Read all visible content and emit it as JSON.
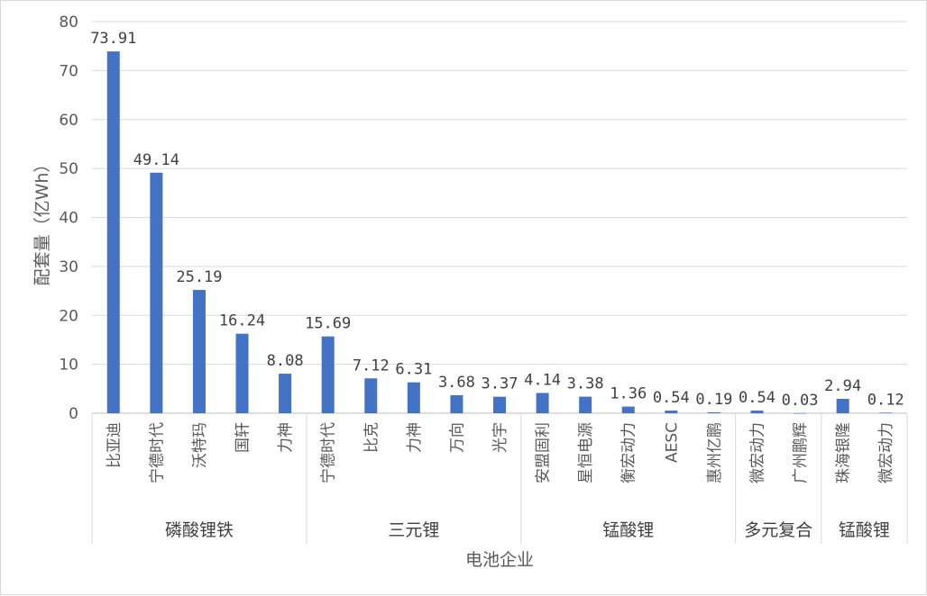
{
  "chart_data": {
    "type": "bar",
    "xlabel": "电池企业",
    "ylabel": "配套量（亿Wh）",
    "ylim": [
      0,
      80
    ],
    "yticks": [
      0,
      10,
      20,
      30,
      40,
      50,
      60,
      70,
      80
    ],
    "grid": true,
    "legend": "none",
    "color": "#4472c4",
    "categories": [
      "比亚迪",
      "宁德时代",
      "沃特玛",
      "国轩",
      "力神",
      "宁德时代",
      "比克",
      "力神",
      "万向",
      "光宇",
      "安盟固利",
      "星恒电源",
      "衡宏动力",
      "AESC",
      "惠州亿鹏",
      "微宏动力",
      "广州鹏辉",
      "珠海银隆",
      "微宏动力"
    ],
    "values": [
      73.91,
      49.14,
      25.19,
      16.24,
      8.08,
      15.69,
      7.12,
      6.31,
      3.68,
      3.37,
      4.14,
      3.38,
      1.36,
      0.54,
      0.19,
      0.54,
      0.03,
      2.94,
      0.12
    ],
    "data_labels": [
      "73.91",
      "49.14",
      "25.19",
      "16.24",
      "8.08",
      "15.69",
      "7.12",
      "6.31",
      "3.68",
      "3.37",
      "4.14",
      "3.38",
      "1.36",
      "0.54",
      "0.19",
      "0.54",
      "0.03",
      "2.94",
      "0.12"
    ],
    "groups": [
      {
        "label": "磷酸锂铁",
        "start": 0,
        "end": 4
      },
      {
        "label": "三元锂",
        "start": 5,
        "end": 9
      },
      {
        "label": "锰酸锂",
        "start": 10,
        "end": 14
      },
      {
        "label": "多元复合",
        "start": 15,
        "end": 16
      },
      {
        "label": "锰酸锂",
        "start": 17,
        "end": 18
      }
    ]
  }
}
